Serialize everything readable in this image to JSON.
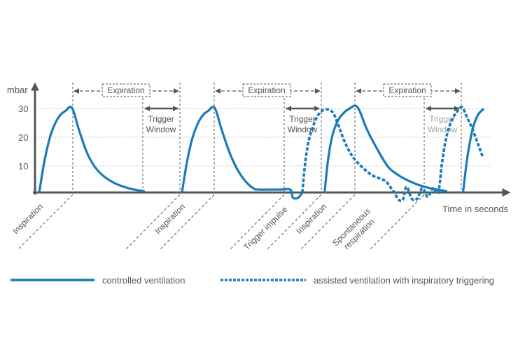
{
  "chart_data": {
    "type": "line",
    "units": {
      "y": "mbar",
      "x": "Time in seconds"
    },
    "y_ticks": [
      10,
      20,
      30
    ],
    "ylim": [
      0,
      35
    ],
    "series": [
      {
        "name": "controlled ventilation",
        "style": "solid",
        "color": "#1a7bb8",
        "points": [
          [
            0.0,
            0
          ],
          [
            0.1,
            11
          ],
          [
            0.2,
            19
          ],
          [
            0.3,
            24
          ],
          [
            0.4,
            27
          ],
          [
            0.5,
            28.5
          ],
          [
            0.62,
            29.5
          ],
          [
            0.75,
            22
          ],
          [
            0.9,
            14
          ],
          [
            1.05,
            9
          ],
          [
            1.2,
            6
          ],
          [
            1.4,
            3.5
          ],
          [
            1.6,
            2
          ],
          [
            1.8,
            1
          ],
          [
            1.98,
            0.5
          ]
        ]
      },
      {
        "name": "controlled ventilation",
        "style": "solid",
        "color": "#1a7bb8",
        "points": [
          [
            2.7,
            0
          ],
          [
            2.8,
            11
          ],
          [
            2.9,
            19
          ],
          [
            3.0,
            24
          ],
          [
            3.1,
            27
          ],
          [
            3.2,
            28.5
          ],
          [
            3.32,
            29.5
          ],
          [
            3.45,
            22
          ],
          [
            3.6,
            14
          ],
          [
            3.75,
            8
          ],
          [
            3.9,
            4
          ],
          [
            4.05,
            1.5
          ],
          [
            4.15,
            1
          ],
          [
            4.55,
            1
          ],
          [
            4.75,
            1
          ],
          [
            4.8,
            -1.8
          ],
          [
            4.9,
            -1.8
          ],
          [
            4.98,
            0
          ]
        ]
      },
      {
        "name": "controlled ventilation",
        "style": "solid",
        "color": "#1a7bb8",
        "points": [
          [
            5.4,
            0
          ],
          [
            5.47,
            12
          ],
          [
            5.55,
            20
          ],
          [
            5.65,
            25
          ],
          [
            5.75,
            27.5
          ],
          [
            5.85,
            29
          ],
          [
            6.02,
            29.8
          ],
          [
            6.2,
            22
          ],
          [
            6.4,
            15
          ],
          [
            6.6,
            9
          ],
          [
            6.8,
            6
          ],
          [
            7.0,
            4
          ],
          [
            7.2,
            2.5
          ],
          [
            7.4,
            1.5
          ],
          [
            7.7,
            0.5
          ]
        ]
      },
      {
        "name": "controlled ventilation",
        "style": "solid",
        "color": "#1a7bb8",
        "points": [
          [
            8.02,
            0
          ],
          [
            8.1,
            12
          ],
          [
            8.2,
            22
          ],
          [
            8.3,
            27
          ],
          [
            8.4,
            29
          ]
        ]
      },
      {
        "name": "assisted ventilation with inspiratory triggering",
        "style": "dotted",
        "color": "#1a7bb8",
        "points": [
          [
            4.98,
            0
          ],
          [
            5.03,
            10
          ],
          [
            5.1,
            18
          ],
          [
            5.2,
            24
          ],
          [
            5.3,
            27.5
          ],
          [
            5.42,
            29
          ],
          [
            5.55,
            28
          ],
          [
            5.65,
            24
          ],
          [
            5.75,
            19
          ],
          [
            5.85,
            15
          ],
          [
            5.95,
            12
          ],
          [
            6.1,
            9
          ],
          [
            6.3,
            6
          ],
          [
            6.5,
            4.5
          ],
          [
            6.58,
            3.5
          ],
          [
            6.66,
            1.5
          ],
          [
            6.72,
            0
          ],
          [
            6.8,
            -2.5
          ],
          [
            6.88,
            -2.5
          ],
          [
            6.95,
            2
          ],
          [
            7.05,
            -2.2
          ],
          [
            7.15,
            -2.2
          ],
          [
            7.25,
            1.5
          ],
          [
            7.35,
            -1.5
          ],
          [
            7.45,
            1.5
          ],
          [
            7.55,
            0
          ],
          [
            7.62,
            10
          ],
          [
            7.7,
            19
          ],
          [
            7.8,
            25
          ],
          [
            7.9,
            28
          ],
          [
            8.0,
            29.7
          ],
          [
            8.1,
            26
          ],
          [
            8.2,
            22
          ],
          [
            8.3,
            17
          ],
          [
            8.4,
            12
          ]
        ]
      }
    ],
    "phase_labels": {
      "expiration": "Expiration",
      "trigger_window": [
        "Trigger",
        "Window"
      ],
      "trigger_window_faded": [
        "Trigger",
        "Window"
      ],
      "inspiration": "Inspiration",
      "trigger_impulse": "Trigger impulse",
      "spontaneous_respiration": [
        "Spontaneous",
        "respiration"
      ]
    },
    "grid": true,
    "legend_position": "bottom"
  }
}
